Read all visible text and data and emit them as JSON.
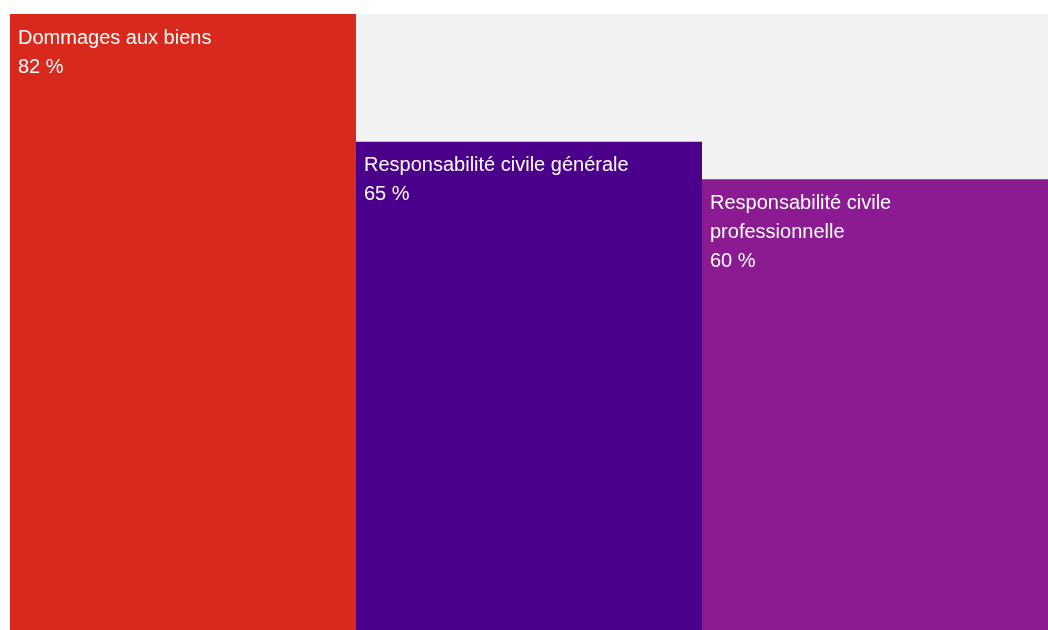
{
  "chart_data": {
    "type": "bar",
    "categories": [
      "Dommages aux biens",
      "Responsabilité civile générale",
      "Responsabilité civile professionnelle"
    ],
    "values": [
      82,
      65,
      60
    ],
    "colors": [
      "#d9291c",
      "#4b008c",
      "#8b1a93"
    ],
    "value_labels": [
      "82 %",
      "65 %",
      "60 %"
    ]
  }
}
